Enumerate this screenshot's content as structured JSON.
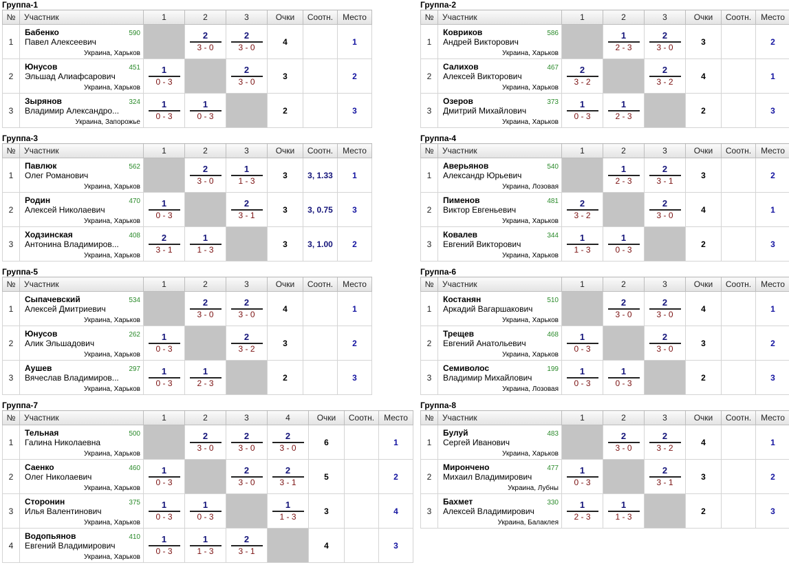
{
  "headers": {
    "no": "№",
    "player": "Участник",
    "points": "Очки",
    "ratio": "Соотн.",
    "place": "Место"
  },
  "groups": [
    {
      "title": "Группа-1",
      "cols": [
        "1",
        "2",
        "3"
      ],
      "players": [
        {
          "idx": "1",
          "surname": "Бабенко",
          "full": "Павел Алексеевич",
          "rating": "590",
          "city": "Украина, Харьков",
          "results": [
            null,
            {
              "top": "2",
              "bottom": "3 - 0"
            },
            {
              "top": "2",
              "bottom": "3 - 0"
            }
          ],
          "points": "4",
          "ratio": "",
          "place": "1"
        },
        {
          "idx": "2",
          "surname": "Юнусов",
          "full": "Эльшад Алиафсарович",
          "rating": "451",
          "city": "Украина, Харьков",
          "results": [
            {
              "top": "1",
              "bottom": "0 - 3"
            },
            null,
            {
              "top": "2",
              "bottom": "3 - 0"
            }
          ],
          "points": "3",
          "ratio": "",
          "place": "2"
        },
        {
          "idx": "3",
          "surname": "Зырянов",
          "full": "Владимир Александро...",
          "rating": "324",
          "city": "Украина, Запорожье",
          "results": [
            {
              "top": "1",
              "bottom": "0 - 3"
            },
            {
              "top": "1",
              "bottom": "0 - 3"
            },
            null
          ],
          "points": "2",
          "ratio": "",
          "place": "3"
        }
      ]
    },
    {
      "title": "Группа-2",
      "cols": [
        "1",
        "2",
        "3"
      ],
      "players": [
        {
          "idx": "1",
          "surname": "Ковриков",
          "full": "Андрей Викторович",
          "rating": "586",
          "city": "Украина, Харьков",
          "results": [
            null,
            {
              "top": "1",
              "bottom": "2 - 3"
            },
            {
              "top": "2",
              "bottom": "3 - 0"
            }
          ],
          "points": "3",
          "ratio": "",
          "place": "2"
        },
        {
          "idx": "2",
          "surname": "Салихов",
          "full": "Алексей Викторович",
          "rating": "467",
          "city": "Украина, Харьков",
          "results": [
            {
              "top": "2",
              "bottom": "3 - 2"
            },
            null,
            {
              "top": "2",
              "bottom": "3 - 2"
            }
          ],
          "points": "4",
          "ratio": "",
          "place": "1"
        },
        {
          "idx": "3",
          "surname": "Озеров",
          "full": "Дмитрий Михайлович",
          "rating": "373",
          "city": "Украина, Харьков",
          "results": [
            {
              "top": "1",
              "bottom": "0 - 3"
            },
            {
              "top": "1",
              "bottom": "2 - 3"
            },
            null
          ],
          "points": "2",
          "ratio": "",
          "place": "3"
        }
      ]
    },
    {
      "title": "Группа-3",
      "cols": [
        "1",
        "2",
        "3"
      ],
      "players": [
        {
          "idx": "1",
          "surname": "Павлюк",
          "full": "Олег Романович",
          "rating": "562",
          "city": "Украина, Харьков",
          "results": [
            null,
            {
              "top": "2",
              "bottom": "3 - 0"
            },
            {
              "top": "1",
              "bottom": "1 - 3"
            }
          ],
          "points": "3",
          "ratio": "3, 1.33",
          "place": "1"
        },
        {
          "idx": "2",
          "surname": "Родин",
          "full": "Алексей Николаевич",
          "rating": "470",
          "city": "Украина, Харьков",
          "results": [
            {
              "top": "1",
              "bottom": "0 - 3"
            },
            null,
            {
              "top": "2",
              "bottom": "3 - 1"
            }
          ],
          "points": "3",
          "ratio": "3, 0.75",
          "place": "3"
        },
        {
          "idx": "3",
          "surname": "Ходзинская",
          "full": "Антонина Владимиров...",
          "rating": "408",
          "city": "Украина, Харьков",
          "results": [
            {
              "top": "2",
              "bottom": "3 - 1"
            },
            {
              "top": "1",
              "bottom": "1 - 3"
            },
            null
          ],
          "points": "3",
          "ratio": "3, 1.00",
          "place": "2"
        }
      ]
    },
    {
      "title": "Группа-4",
      "cols": [
        "1",
        "2",
        "3"
      ],
      "players": [
        {
          "idx": "1",
          "surname": "Аверьянов",
          "full": "Александр Юрьевич",
          "rating": "540",
          "city": "Украина, Лозовая",
          "results": [
            null,
            {
              "top": "1",
              "bottom": "2 - 3"
            },
            {
              "top": "2",
              "bottom": "3 - 1"
            }
          ],
          "points": "3",
          "ratio": "",
          "place": "2"
        },
        {
          "idx": "2",
          "surname": "Пименов",
          "full": "Виктор Евгеньевич",
          "rating": "481",
          "city": "Украина, Харьков",
          "results": [
            {
              "top": "2",
              "bottom": "3 - 2"
            },
            null,
            {
              "top": "2",
              "bottom": "3 - 0"
            }
          ],
          "points": "4",
          "ratio": "",
          "place": "1"
        },
        {
          "idx": "3",
          "surname": "Ковалев",
          "full": "Евгений Викторович",
          "rating": "344",
          "city": "Украина, Харьков",
          "results": [
            {
              "top": "1",
              "bottom": "1 - 3"
            },
            {
              "top": "1",
              "bottom": "0 - 3"
            },
            null
          ],
          "points": "2",
          "ratio": "",
          "place": "3"
        }
      ]
    },
    {
      "title": "Группа-5",
      "cols": [
        "1",
        "2",
        "3"
      ],
      "players": [
        {
          "idx": "1",
          "surname": "Сыпачевский",
          "full": "Алексей Дмитриевич",
          "rating": "534",
          "city": "Украина, Харьков",
          "results": [
            null,
            {
              "top": "2",
              "bottom": "3 - 0"
            },
            {
              "top": "2",
              "bottom": "3 - 0"
            }
          ],
          "points": "4",
          "ratio": "",
          "place": "1"
        },
        {
          "idx": "2",
          "surname": "Юнусов",
          "full": "Алик Эльшадович",
          "rating": "262",
          "city": "Украина, Харьков",
          "results": [
            {
              "top": "1",
              "bottom": "0 - 3"
            },
            null,
            {
              "top": "2",
              "bottom": "3 - 2"
            }
          ],
          "points": "3",
          "ratio": "",
          "place": "2"
        },
        {
          "idx": "3",
          "surname": "Аушев",
          "full": "Вячеслав Владимиров...",
          "rating": "297",
          "city": "Украина, Харьков",
          "results": [
            {
              "top": "1",
              "bottom": "0 - 3"
            },
            {
              "top": "1",
              "bottom": "2 - 3"
            },
            null
          ],
          "points": "2",
          "ratio": "",
          "place": "3"
        }
      ]
    },
    {
      "title": "Группа-6",
      "cols": [
        "1",
        "2",
        "3"
      ],
      "players": [
        {
          "idx": "1",
          "surname": "Костанян",
          "full": "Аркадий Вагаршакович",
          "rating": "510",
          "city": "Украина, Харьков",
          "results": [
            null,
            {
              "top": "2",
              "bottom": "3 - 0"
            },
            {
              "top": "2",
              "bottom": "3 - 0"
            }
          ],
          "points": "4",
          "ratio": "",
          "place": "1"
        },
        {
          "idx": "2",
          "surname": "Трещев",
          "full": "Евгений Анатольевич",
          "rating": "468",
          "city": "Украина, Харьков",
          "results": [
            {
              "top": "1",
              "bottom": "0 - 3"
            },
            null,
            {
              "top": "2",
              "bottom": "3 - 0"
            }
          ],
          "points": "3",
          "ratio": "",
          "place": "2"
        },
        {
          "idx": "3",
          "surname": "Семиволос",
          "full": "Владимир Михайлович",
          "rating": "199",
          "city": "Украина, Лозовая",
          "results": [
            {
              "top": "1",
              "bottom": "0 - 3"
            },
            {
              "top": "1",
              "bottom": "0 - 3"
            },
            null
          ],
          "points": "2",
          "ratio": "",
          "place": "3"
        }
      ]
    },
    {
      "title": "Группа-7",
      "cols": [
        "1",
        "2",
        "3",
        "4"
      ],
      "players": [
        {
          "idx": "1",
          "surname": "Тельная",
          "full": "Галина Николаевна",
          "rating": "500",
          "city": "Украина, Харьков",
          "results": [
            null,
            {
              "top": "2",
              "bottom": "3 - 0"
            },
            {
              "top": "2",
              "bottom": "3 - 0"
            },
            {
              "top": "2",
              "bottom": "3 - 0"
            }
          ],
          "points": "6",
          "ratio": "",
          "place": "1"
        },
        {
          "idx": "2",
          "surname": "Саенко",
          "full": "Олег Николаевич",
          "rating": "460",
          "city": "Украина, Харьков",
          "results": [
            {
              "top": "1",
              "bottom": "0 - 3"
            },
            null,
            {
              "top": "2",
              "bottom": "3 - 0"
            },
            {
              "top": "2",
              "bottom": "3 - 1"
            }
          ],
          "points": "5",
          "ratio": "",
          "place": "2"
        },
        {
          "idx": "3",
          "surname": "Сторонин",
          "full": "Илья Валентинович",
          "rating": "375",
          "city": "Украина, Харьков",
          "results": [
            {
              "top": "1",
              "bottom": "0 - 3"
            },
            {
              "top": "1",
              "bottom": "0 - 3"
            },
            null,
            {
              "top": "1",
              "bottom": "1 - 3"
            }
          ],
          "points": "3",
          "ratio": "",
          "place": "4"
        },
        {
          "idx": "4",
          "surname": "Водопьянов",
          "full": "Евгений Владимирович",
          "rating": "410",
          "city": "Украина, Харьков",
          "results": [
            {
              "top": "1",
              "bottom": "0 - 3"
            },
            {
              "top": "1",
              "bottom": "1 - 3"
            },
            {
              "top": "2",
              "bottom": "3 - 1"
            },
            null
          ],
          "points": "4",
          "ratio": "",
          "place": "3"
        }
      ]
    },
    {
      "title": "Группа-8",
      "cols": [
        "1",
        "2",
        "3"
      ],
      "players": [
        {
          "idx": "1",
          "surname": "Булуй",
          "full": "Сергей Иванович",
          "rating": "483",
          "city": "Украина, Харьков",
          "results": [
            null,
            {
              "top": "2",
              "bottom": "3 - 0"
            },
            {
              "top": "2",
              "bottom": "3 - 2"
            }
          ],
          "points": "4",
          "ratio": "",
          "place": "1"
        },
        {
          "idx": "2",
          "surname": "Мирончено",
          "full": "Михаил Владимирович",
          "rating": "477",
          "city": "Украина, Лубны",
          "results": [
            {
              "top": "1",
              "bottom": "0 - 3"
            },
            null,
            {
              "top": "2",
              "bottom": "3 - 1"
            }
          ],
          "points": "3",
          "ratio": "",
          "place": "2"
        },
        {
          "idx": "3",
          "surname": "Бахмет",
          "full": "Алексей Владимирович",
          "rating": "330",
          "city": "Украина, Балаклея",
          "results": [
            {
              "top": "1",
              "bottom": "2 - 3"
            },
            {
              "top": "1",
              "bottom": "1 - 3"
            },
            null
          ],
          "points": "2",
          "ratio": "",
          "place": "3"
        }
      ]
    }
  ]
}
